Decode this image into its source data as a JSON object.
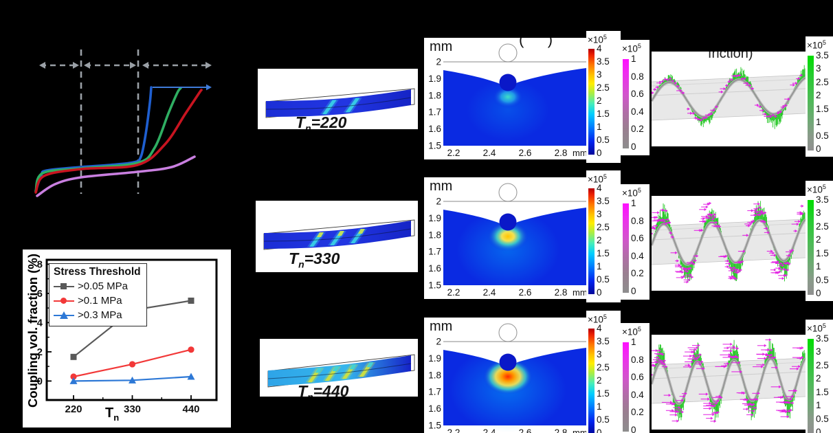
{
  "background": "#000000",
  "scales": {
    "mult": "×10",
    "exp": "5"
  },
  "colors": {
    "curve_blue": "#1f5fd0",
    "curve_green": "#2fae62",
    "curve_red": "#c81420",
    "curve_violet": "#c97fe0",
    "guide_gray": "#9aa0a6",
    "blue_arrow": "#3f7bd9",
    "series_gray": "#595959",
    "series_red": "#f23838",
    "series_blue": "#2d78d6",
    "vector_green": "#17c417",
    "vector_magenta": "#e31ee3",
    "heat_base_blue": "#0a2ae2"
  },
  "coupling_chart": {
    "legend_title": "Stress Threshold",
    "ylabel": "Coupling vol. fraction (%)",
    "xlabel_base": "T",
    "xlabel_sub": "n"
  },
  "beam_panels": {
    "labels": [
      {
        "base": "T",
        "sub": "n",
        "rest": "=220"
      },
      {
        "base": "T",
        "sub": "n",
        "rest": "=330"
      },
      {
        "base": "T",
        "sub": "n",
        "rest": "=440"
      }
    ],
    "rows": [
      {
        "body": [
          "#1b2ed6",
          "#2236e2",
          "#1524c6"
        ],
        "stripes": [
          0.44,
          0.6
        ],
        "stripe_color": "#38cfe6",
        "accent": ""
      },
      {
        "body": [
          "#1b2ed6",
          "#2236e2",
          "#1524c6"
        ],
        "stripes": [
          0.36,
          0.5,
          0.64
        ],
        "stripe_color": "#38cfe6",
        "accent": "#cfe24a"
      },
      {
        "body": [
          "#2ea4e8",
          "#36b6ec",
          "#1522c8"
        ],
        "stripes": [
          0.33,
          0.45,
          0.57,
          0.69
        ],
        "stripe_color": "#cdE03f",
        "accent": "#35d0e0"
      }
    ]
  },
  "chart_data": [
    {
      "type": "line",
      "id": "stress-strain-schematic",
      "title": "",
      "xlabel": "",
      "ylabel": "",
      "axes_labeled": false,
      "annotations": [
        "three dashed double-headed range arrows",
        "two dashed vertical separators",
        "horizontal arrow from blue curve top"
      ],
      "guides": {
        "vline_x": [
          78,
          161
        ],
        "vline_y": [
          62,
          272
        ],
        "arrow_y": 85,
        "arrow_segments": [
          [
            17,
            75
          ],
          [
            82,
            158
          ],
          [
            167,
            268
          ]
        ],
        "blue_arrow": [
          [
            182,
            117
          ],
          [
            268,
            117
          ]
        ]
      },
      "series": [
        {
          "name": "blue-curve",
          "color": "#1f5fd0",
          "points": [
            [
              12,
              268
            ],
            [
              20,
              245
            ],
            [
              28,
              238
            ],
            [
              78,
              233
            ],
            [
              120,
              230
            ],
            [
              155,
              226
            ],
            [
              165,
              218
            ],
            [
              172,
              185
            ],
            [
              178,
              140
            ],
            [
              180,
              117
            ]
          ]
        },
        {
          "name": "green-curve",
          "color": "#2fae62",
          "points": [
            [
              12,
              268
            ],
            [
              22,
              242
            ],
            [
              78,
              235
            ],
            [
              160,
              227
            ],
            [
              185,
              205
            ],
            [
              205,
              155
            ],
            [
              218,
              125
            ],
            [
              223,
              118
            ]
          ]
        },
        {
          "name": "red-curve",
          "color": "#c81420",
          "points": [
            [
              12,
              270
            ],
            [
              24,
              246
            ],
            [
              78,
              236
            ],
            [
              160,
              230
            ],
            [
              200,
              200
            ],
            [
              230,
              155
            ],
            [
              250,
              125
            ],
            [
              253,
              121
            ]
          ]
        },
        {
          "name": "violet-curve",
          "color": "#c97fe0",
          "points": [
            [
              14,
              275
            ],
            [
              40,
              258
            ],
            [
              78,
              248
            ],
            [
              160,
              240
            ],
            [
              210,
              233
            ],
            [
              243,
              218
            ]
          ]
        }
      ]
    },
    {
      "type": "line",
      "id": "coupling-vol-fraction",
      "categories": [
        220,
        330,
        440
      ],
      "series": [
        {
          "name": ">0.05 MPa",
          "color": "#595959",
          "marker": "square",
          "values": [
            1.65,
            4.85,
            5.5
          ]
        },
        {
          "name": ">0.1 MPa",
          "color": "#f23838",
          "marker": "circle",
          "values": [
            0.3,
            1.15,
            2.15
          ]
        },
        {
          "name": ">0.3 MPa",
          "color": "#2d78d6",
          "marker": "triangle",
          "values": [
            0.0,
            0.05,
            0.3
          ]
        }
      ],
      "legend_title": "Stress Threshold",
      "xlabel": "Tn",
      "ylabel": "Coupling vol. fraction (%)",
      "yticks": [
        0,
        2,
        4,
        6,
        8
      ],
      "ylim": [
        -1.3,
        8.3
      ],
      "legend_position": "upper left",
      "grid": false
    },
    {
      "type": "heatmap",
      "id": "contact-stress-heatmaps",
      "title_fragment": "(    )",
      "y_unit": "mm",
      "x_unit": "mm",
      "y_ticks": [
        2,
        1.9,
        1.8,
        1.7,
        1.6,
        1.5
      ],
      "x_ticks": [
        2.2,
        2.4,
        2.6,
        2.8
      ],
      "colorbar": {
        "scale": "×10^5",
        "ticks": [
          4,
          3.5,
          3,
          2.5,
          2,
          1.5,
          1,
          0.5,
          0
        ],
        "colormap": "jet"
      },
      "rows": [
        {
          "intensity": "low"
        },
        {
          "intensity": "medium"
        },
        {
          "intensity": "high"
        }
      ]
    },
    {
      "type": "vector",
      "id": "friction-force-vector-plots",
      "title_fragment": "friction)",
      "rows": [
        {
          "periods": 2.2,
          "amplitude": 26,
          "spike": 16,
          "arrow_len": 7
        },
        {
          "periods": 3.2,
          "amplitude": 30,
          "spike": 22,
          "arrow_len": 9
        },
        {
          "periods": 4.2,
          "amplitude": 30,
          "spike": 22,
          "arrow_len": 13
        }
      ],
      "left_colorbar": {
        "scale": "×10^5",
        "ticks": [
          1,
          0.8,
          0.6,
          0.4,
          0.2,
          0
        ],
        "colormap": "magenta-gray"
      },
      "right_colorbar": {
        "scale": "×10^5",
        "ticks": [
          3.5,
          3,
          2.5,
          2,
          1.5,
          1,
          0.5,
          0
        ],
        "colormap": "green-gray"
      }
    }
  ]
}
